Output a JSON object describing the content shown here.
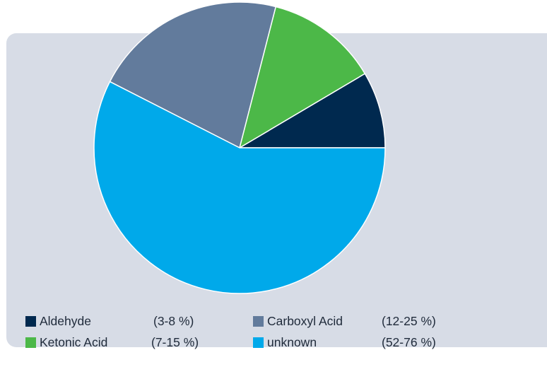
{
  "chart_data": {
    "type": "pie",
    "title": "",
    "slices": [
      {
        "label": "Aldehyde",
        "range": "(3-8 %)",
        "value": 8.5,
        "color": "#00294f"
      },
      {
        "label": "Ketonic Acid",
        "range": "(7-15 %)",
        "value": 12.5,
        "color": "#4cb848"
      },
      {
        "label": "Carboxyl Acid",
        "range": "(12-25 %)",
        "value": 21.5,
        "color": "#627b9c"
      },
      {
        "label": "unknown",
        "range": "(52-76 %)",
        "value": 57.5,
        "color": "#00a9ea"
      }
    ],
    "legend_position": "bottom-left",
    "panel_color": "#d7dce6"
  }
}
